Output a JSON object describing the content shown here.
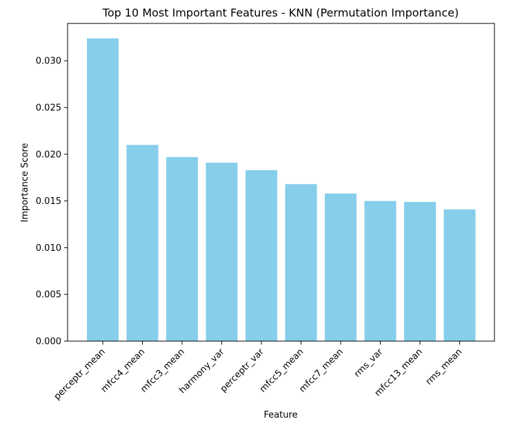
{
  "chart_data": {
    "type": "bar",
    "title": "Top 10 Most Important Features - KNN (Permutation Importance)",
    "xlabel": "Feature",
    "ylabel": "Importance Score",
    "categories": [
      "perceptr_mean",
      "mfcc4_mean",
      "mfcc3_mean",
      "harmony_var",
      "perceptr_var",
      "mfcc5_mean",
      "mfcc7_mean",
      "rms_var",
      "mfcc13_mean",
      "rms_mean"
    ],
    "values": [
      0.0324,
      0.021,
      0.0197,
      0.0191,
      0.0183,
      0.0168,
      0.0158,
      0.015,
      0.0149,
      0.0141
    ],
    "ylim": [
      0,
      0.034
    ],
    "yticks": [
      0.0,
      0.005,
      0.01,
      0.015,
      0.02,
      0.025,
      0.03
    ],
    "ytick_labels": [
      "0.000",
      "0.005",
      "0.010",
      "0.015",
      "0.020",
      "0.025",
      "0.030"
    ],
    "bar_color": "#87ceeb",
    "grid": false,
    "legend": false,
    "xtick_rotation": "45"
  }
}
